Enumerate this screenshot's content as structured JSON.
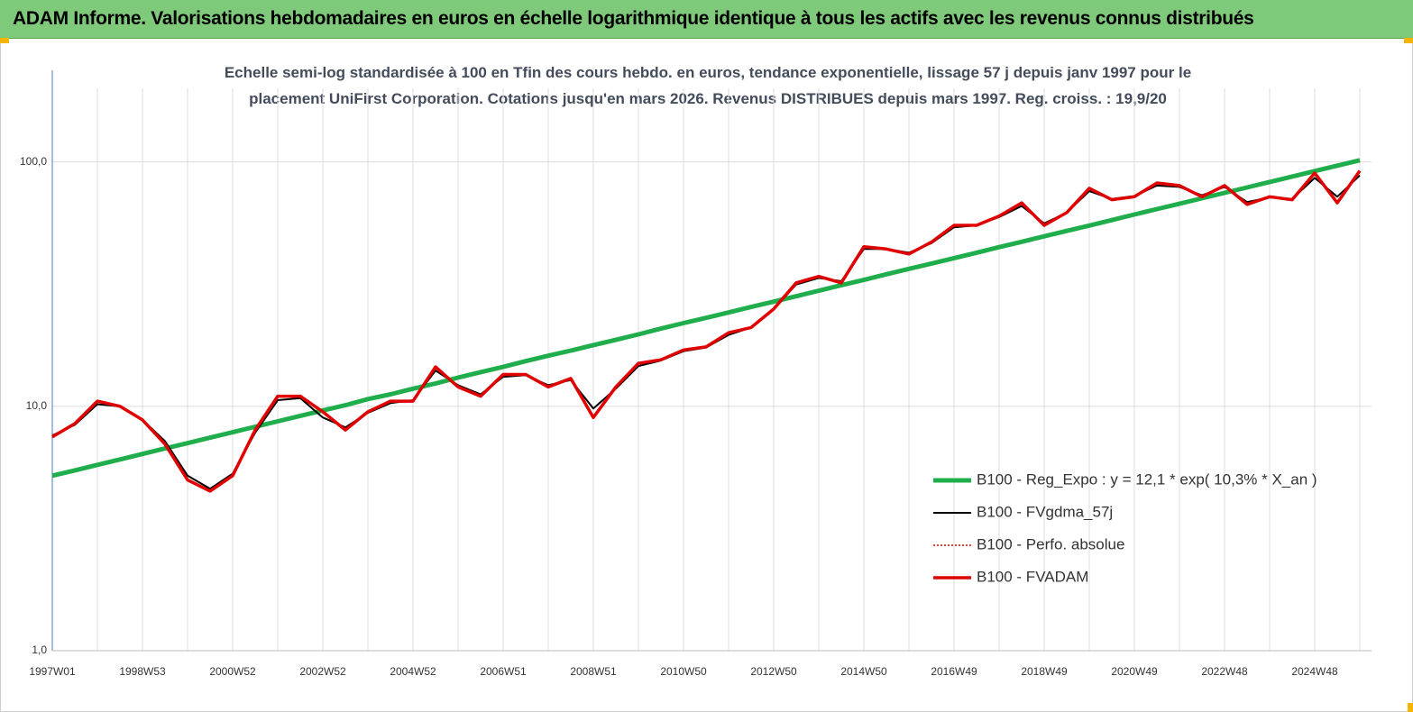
{
  "chart_data": {
    "type": "line",
    "title": "ADAM Informe. Valorisations hebdomadaires en euros en échelle logarithmique identique à tous les actifs avec les revenus connus distribués",
    "subtitle": "Echelle semi-log standardisée à 100 en Tfin des cours hebdo. en euros, tendance exponentielle, lissage 57 j depuis janv 1997 pour le placement UniFirst Corporation. Cotations jusqu'en mars 2026. Revenus DISTRIBUES depuis mars 1997. Reg. croiss. : 19,9/20",
    "categories": [
      "1997W01",
      null,
      null,
      null,
      "1998W53",
      null,
      null,
      null,
      "2000W52",
      null,
      null,
      null,
      "2002W52",
      null,
      null,
      null,
      "2004W52",
      null,
      null,
      null,
      "2006W51",
      null,
      null,
      null,
      "2008W51",
      null,
      null,
      null,
      "2010W50",
      null,
      null,
      null,
      "2012W50",
      null,
      null,
      null,
      "2014W50",
      null,
      null,
      null,
      "2016W49",
      null,
      null,
      null,
      "2018W49",
      null,
      null,
      null,
      "2020W49",
      null,
      null,
      null,
      "2022W48",
      null,
      null,
      null,
      "2024W48",
      null,
      null
    ],
    "log_scale": true,
    "ylim": [
      1,
      200
    ],
    "yticks": [
      {
        "value": 1,
        "label": "1,0"
      },
      {
        "value": 10,
        "label": "10,0"
      },
      {
        "value": 100,
        "label": "100,0"
      }
    ],
    "grid": true,
    "legend": "lower right",
    "series": [
      {
        "name": "B100 - Reg_Expo : y = 12,1 * exp( 10,3% *  X_an )",
        "color": "#1fae4b",
        "linewidth": 5,
        "values": [
          5.2,
          5.47,
          5.76,
          6.06,
          6.38,
          6.72,
          7.07,
          7.44,
          7.83,
          8.25,
          8.68,
          9.14,
          9.62,
          10.1,
          10.7,
          11.2,
          11.8,
          12.4,
          13.1,
          13.8,
          14.5,
          15.3,
          16.1,
          16.9,
          17.8,
          18.7,
          19.7,
          20.8,
          21.9,
          23.0,
          24.2,
          25.5,
          26.8,
          28.2,
          29.7,
          31.3,
          32.9,
          34.7,
          36.5,
          38.4,
          40.4,
          42.5,
          44.8,
          47.1,
          49.6,
          52.2,
          54.9,
          57.8,
          60.9,
          64.1,
          67.4,
          71.0,
          74.7,
          78.6,
          82.8,
          87.1,
          91.7,
          96.5,
          101.6
        ]
      },
      {
        "name": "B100 - FVgdma_57j",
        "color": "#000000",
        "linewidth": 2,
        "values": [
          7.6,
          8.4,
          10.2,
          10.0,
          8.8,
          7.2,
          5.2,
          4.6,
          5.3,
          7.8,
          10.6,
          10.8,
          9.0,
          8.2,
          9.4,
          10.3,
          10.6,
          14.0,
          12.2,
          11.2,
          13.2,
          13.4,
          12.2,
          12.8,
          9.8,
          11.8,
          14.6,
          15.4,
          16.8,
          17.4,
          19.6,
          21.0,
          25.0,
          31.5,
          33.5,
          32.5,
          44.0,
          44.0,
          42.5,
          46.5,
          54.0,
          55.0,
          59.5,
          66.0,
          56.0,
          62.0,
          76.0,
          70.5,
          72.5,
          80.0,
          79.0,
          73.0,
          79.0,
          68.5,
          71.5,
          70.5,
          86.0,
          72.0,
          88.0
        ]
      },
      {
        "name": "B100 - Perfo. absolue",
        "color": "#e00000",
        "linewidth": 1.5,
        "linestyle": "dotted",
        "values": [
          7.5,
          8.5,
          10.5,
          10.0,
          8.8,
          7.0,
          5.0,
          4.5,
          5.2,
          8.0,
          11.0,
          11.0,
          9.5,
          8.0,
          9.5,
          10.5,
          10.5,
          14.5,
          12.0,
          11.0,
          13.5,
          13.5,
          12.0,
          13.0,
          9.0,
          12.0,
          15.0,
          15.5,
          17.0,
          17.5,
          20.0,
          21.0,
          25.0,
          32.0,
          34.0,
          32.0,
          45.0,
          44.0,
          42.0,
          47.0,
          55.0,
          55.0,
          60.0,
          68.0,
          55.0,
          62.0,
          78.0,
          70.0,
          72.0,
          82.0,
          80.0,
          72.0,
          80.0,
          67.0,
          72.0,
          70.0,
          90.0,
          68.0,
          92.0
        ]
      },
      {
        "name": "B100 - FVADAM",
        "color": "#e00000",
        "linewidth": 3.5,
        "values": [
          7.5,
          8.5,
          10.5,
          10.0,
          8.8,
          7.0,
          5.0,
          4.5,
          5.2,
          8.0,
          11.0,
          11.0,
          9.5,
          8.0,
          9.5,
          10.5,
          10.5,
          14.5,
          12.0,
          11.0,
          13.5,
          13.5,
          12.0,
          13.0,
          9.0,
          12.0,
          15.0,
          15.5,
          17.0,
          17.5,
          20.0,
          21.0,
          25.0,
          32.0,
          34.0,
          32.0,
          45.0,
          44.0,
          42.0,
          47.0,
          55.0,
          55.0,
          60.0,
          68.0,
          55.0,
          62.0,
          78.0,
          70.0,
          72.0,
          82.0,
          80.0,
          72.0,
          80.0,
          67.0,
          72.0,
          70.0,
          90.0,
          68.0,
          92.0
        ]
      }
    ]
  }
}
